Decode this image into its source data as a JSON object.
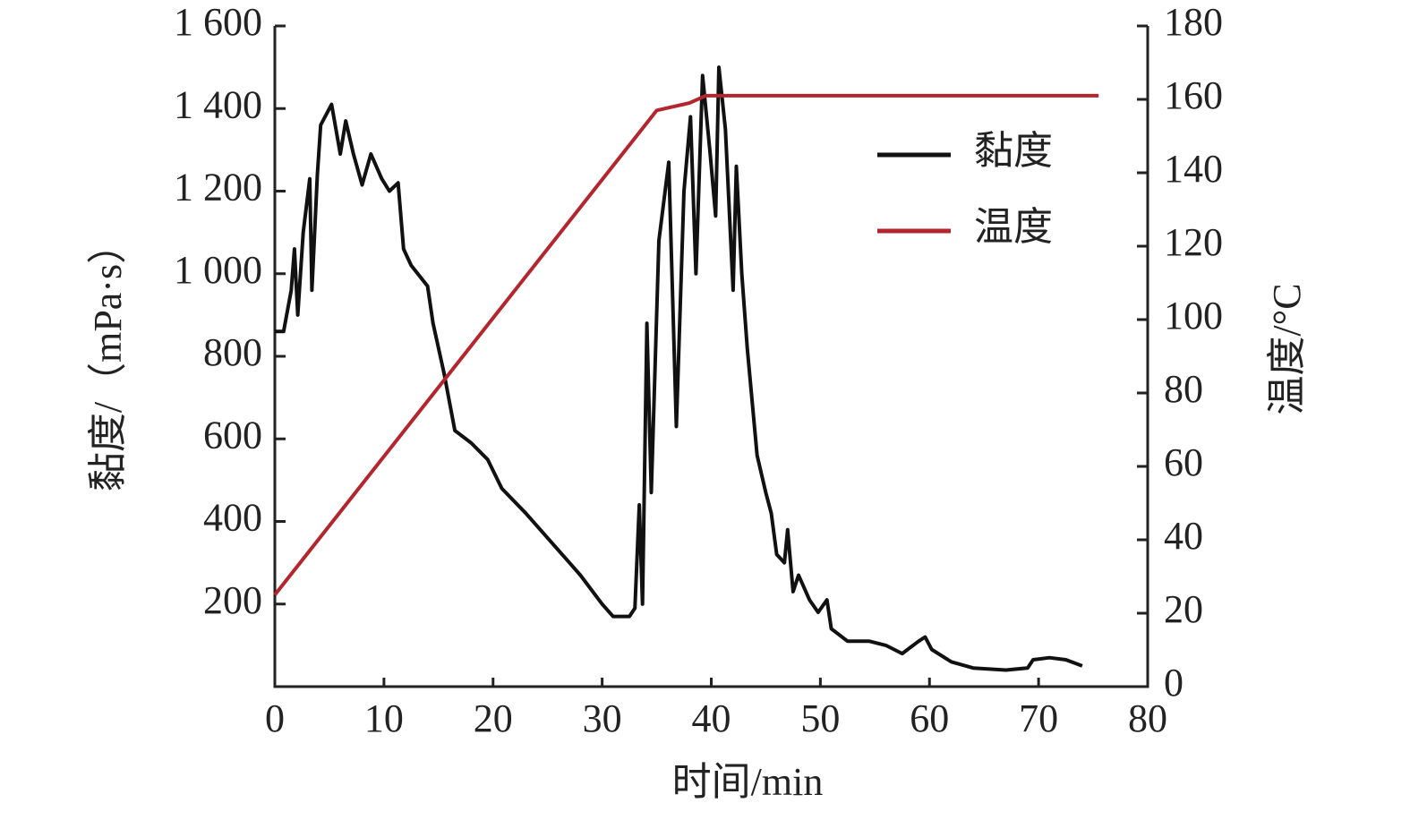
{
  "chart_data": {
    "type": "line",
    "xlabel": "时间/min",
    "ylabel": "黏度/（mPa·s）",
    "y2label": "温度/°C",
    "xlim": [
      0,
      80
    ],
    "xticks": [
      0,
      10,
      20,
      30,
      40,
      50,
      60,
      70,
      80
    ],
    "ylim": [
      0,
      1600
    ],
    "yticks": [
      200,
      400,
      600,
      800,
      {
        "value": 1000,
        "label": "1 000"
      },
      {
        "value": 1200,
        "label": "1 200"
      },
      {
        "value": 1400,
        "label": "1 400"
      },
      {
        "value": 1600,
        "label": "1 600"
      }
    ],
    "y2lim": [
      0,
      180
    ],
    "y2ticks": [
      0,
      20,
      40,
      60,
      80,
      100,
      120,
      140,
      160,
      180
    ],
    "legend": "upper right",
    "series": [
      {
        "name": "黏度",
        "color": "#111111",
        "x": [
          0,
          0.8,
          1.5,
          1.8,
          2.1,
          2.6,
          3.2,
          3.4,
          3.9,
          4.2,
          5.2,
          6.0,
          6.5,
          7.2,
          8.0,
          8.8,
          9.8,
          10.5,
          11.3,
          11.8,
          12.5,
          14,
          14.5,
          15.5,
          16.5,
          18,
          19.5,
          20.8,
          23,
          26,
          28,
          30,
          31,
          32.5,
          33,
          33.4,
          33.7,
          34.1,
          34.5,
          35.2,
          36.1,
          36.8,
          37.5,
          38.1,
          38.6,
          39.2,
          39.9,
          40.4,
          40.7,
          41.3,
          42.0,
          42.3,
          42.8,
          43.3,
          44.2,
          45,
          45.5,
          46,
          46.7,
          47,
          47.5,
          48,
          49,
          49.8,
          50.6,
          51,
          52.5,
          54.5,
          56,
          57.5,
          59,
          59.6,
          60.2,
          62,
          64,
          67,
          69,
          69.5,
          71,
          72.5,
          74
        ],
        "values": [
          860,
          860,
          960,
          1060,
          900,
          1100,
          1230,
          960,
          1240,
          1360,
          1410,
          1290,
          1370,
          1290,
          1215,
          1290,
          1230,
          1200,
          1220,
          1060,
          1020,
          970,
          880,
          760,
          620,
          590,
          550,
          480,
          420,
          330,
          270,
          200,
          170,
          170,
          190,
          440,
          200,
          880,
          470,
          1080,
          1270,
          630,
          1200,
          1380,
          1000,
          1480,
          1290,
          1140,
          1500,
          1350,
          960,
          1260,
          1000,
          820,
          560,
          470,
          420,
          320,
          300,
          380,
          230,
          270,
          210,
          180,
          210,
          140,
          110,
          110,
          100,
          80,
          110,
          120,
          90,
          60,
          45,
          40,
          45,
          65,
          70,
          65,
          50
        ]
      },
      {
        "name": "温度",
        "color": "#b3262d",
        "axis": "y2",
        "x": [
          0,
          35,
          36.5,
          38,
          39.5,
          41,
          75.5
        ],
        "values": [
          25,
          157,
          158,
          159,
          161,
          161,
          161
        ]
      }
    ]
  }
}
